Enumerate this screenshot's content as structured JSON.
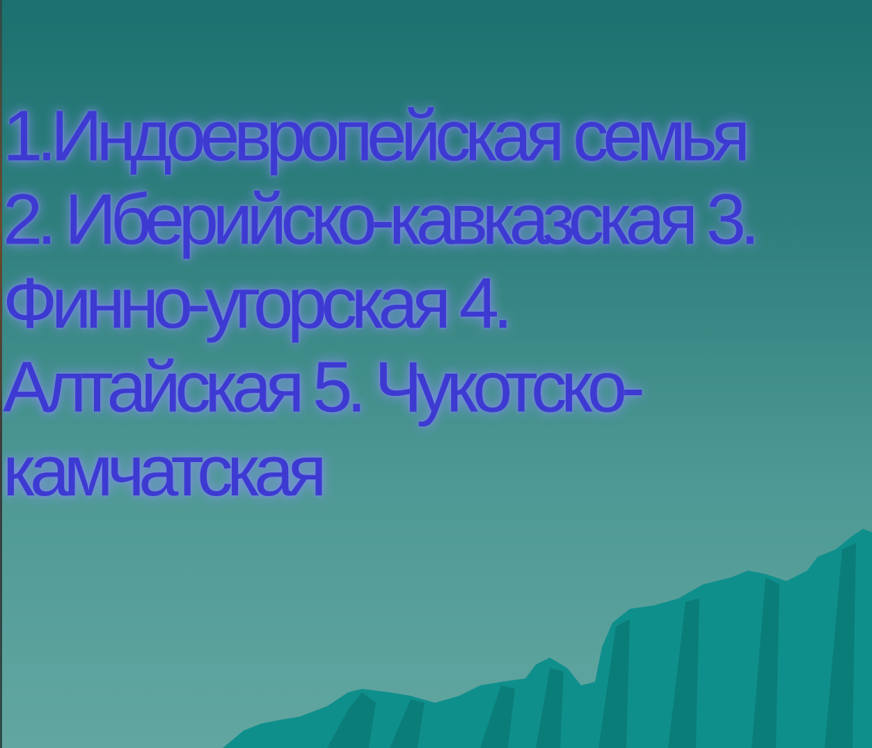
{
  "slide": {
    "body_text": "1.Индоевропейская семья 2. Иберийско-кавказская 3. Финно-угорская 4. Алтайская 5. Чукотско-камчатская",
    "colors": {
      "background_top": "#1b716f",
      "background_bottom": "#62a6a1",
      "text": "#3d3ad1",
      "text_glow": "#8c93f3",
      "mountain": "#0f8f8c",
      "mountain_dark": "#0b7d79"
    }
  }
}
